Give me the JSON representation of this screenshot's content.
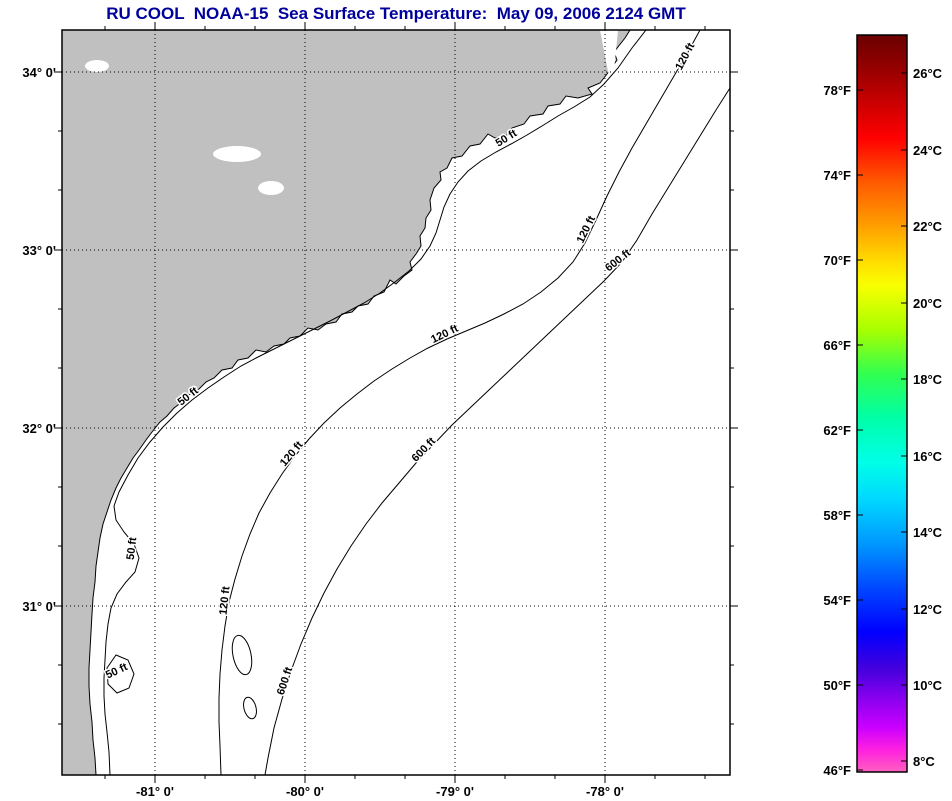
{
  "title": "RU COOL  NOAA-15  Sea Surface Temperature:  May 09, 2006 2124 GMT",
  "axes": {
    "x_labels": [
      "-81° 0'",
      "-80° 0'",
      "-79° 0'",
      "-78° 0'"
    ],
    "y_labels": [
      "34° 0'",
      "33° 0'",
      "32° 0'",
      "31° 0'"
    ]
  },
  "contours": {
    "shallow": "50 ft",
    "mid": "120 ft",
    "deep": "600 ft"
  },
  "colorbar": {
    "fahrenheit_labels": [
      "78°F",
      "74°F",
      "70°F",
      "66°F",
      "62°F",
      "58°F",
      "54°F",
      "50°F",
      "46°F"
    ],
    "celsius_labels": [
      "26°C",
      "24°C",
      "22°C",
      "20°C",
      "18°C",
      "16°C",
      "14°C",
      "12°C",
      "10°C",
      "8°C"
    ]
  },
  "colors": {
    "title": "#00009c",
    "land": "#c0c0c0",
    "background": "#ffffff"
  },
  "chart_data": {
    "type": "map",
    "title": "RU COOL NOAA-15 Sea Surface Temperature: May 09, 2006 2124 GMT",
    "region": {
      "lon_ticks_deg": [
        -81,
        -80,
        -79,
        -78
      ],
      "lat_ticks_deg": [
        34,
        33,
        32,
        31
      ]
    },
    "depth_contours_ft": [
      50,
      120,
      600
    ],
    "colorbar_scale": {
      "fahrenheit_ticks": [
        78,
        74,
        70,
        66,
        62,
        58,
        54,
        50,
        46
      ],
      "celsius_ticks": [
        26,
        24,
        22,
        20,
        18,
        16,
        14,
        12,
        10,
        8
      ]
    },
    "colorbar_gradient": [
      {
        "offset": 0,
        "color": "#6b0000"
      },
      {
        "offset": 4,
        "color": "#900000"
      },
      {
        "offset": 9,
        "color": "#c80000"
      },
      {
        "offset": 14,
        "color": "#ff0000"
      },
      {
        "offset": 20,
        "color": "#ff5a00"
      },
      {
        "offset": 26,
        "color": "#ffa000"
      },
      {
        "offset": 31,
        "color": "#ffe000"
      },
      {
        "offset": 34,
        "color": "#f8ff00"
      },
      {
        "offset": 40,
        "color": "#a8ff00"
      },
      {
        "offset": 46,
        "color": "#30ff50"
      },
      {
        "offset": 52,
        "color": "#00ffa8"
      },
      {
        "offset": 58,
        "color": "#00ffe8"
      },
      {
        "offset": 63,
        "color": "#00d8ff"
      },
      {
        "offset": 69,
        "color": "#0098ff"
      },
      {
        "offset": 75,
        "color": "#0048ff"
      },
      {
        "offset": 81,
        "color": "#0000ff"
      },
      {
        "offset": 86,
        "color": "#4400dd"
      },
      {
        "offset": 90,
        "color": "#8800ee"
      },
      {
        "offset": 94,
        "color": "#cc00ff"
      },
      {
        "offset": 97,
        "color": "#ff20e0"
      },
      {
        "offset": 100,
        "color": "#ff60c0"
      }
    ]
  }
}
